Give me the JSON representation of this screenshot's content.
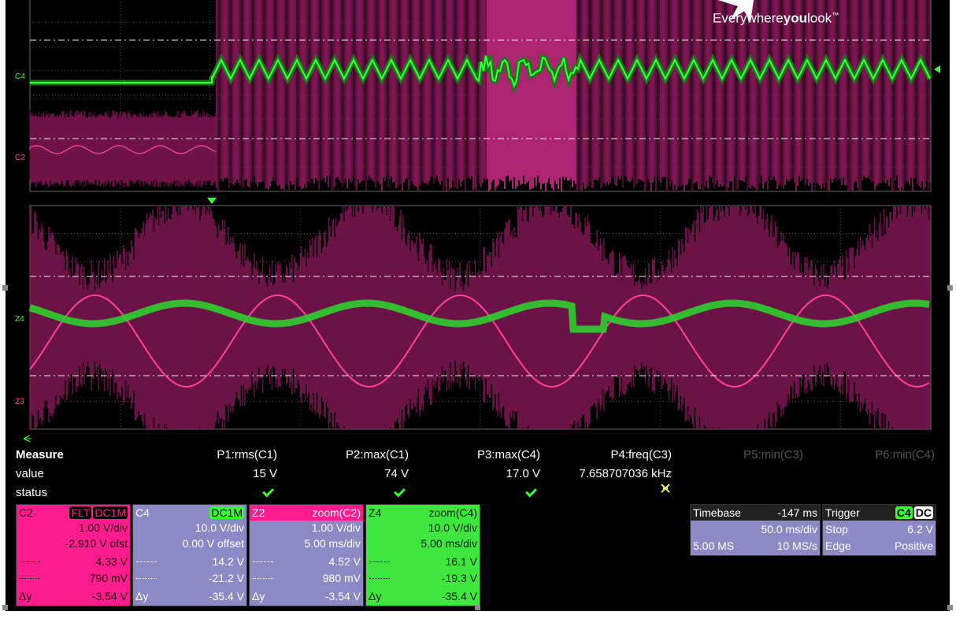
{
  "logo": {
    "parts": [
      "Everywhere",
      "you",
      "look",
      "™"
    ]
  },
  "traces": {
    "upper": [
      "C4",
      "C2"
    ],
    "lower": [
      "Z4",
      "Z3"
    ]
  },
  "measure": {
    "title": "Measure",
    "row_labels": [
      "value",
      "status"
    ],
    "params": [
      {
        "name": "P1:rms(C1)",
        "value": "15 V"
      },
      {
        "name": "P2:max(C1)",
        "value": "74 V"
      },
      {
        "name": "P3:max(C4)",
        "value": "17.0 V"
      },
      {
        "name": "P4:freq(C3)",
        "value": "7.658707036 kHz"
      },
      {
        "name": "P5:min(C3)"
      },
      {
        "name": "P6:min(C4)"
      }
    ]
  },
  "channels": [
    {
      "id": "C2",
      "badges": [
        "FLT",
        "DC1M"
      ],
      "scale": "1.00 V/div",
      "offset": "-2.910 V ofst",
      "cursor1": "4.33 V",
      "cursor2": "790 mV",
      "delta_label": "Δy",
      "delta": "-3.54 V"
    },
    {
      "id": "C4",
      "badges": [
        "DC1M"
      ],
      "scale": "10.0 V/div",
      "offset": "0.00 V offset",
      "cursor1": "14.2 V",
      "cursor2": "-21.2 V",
      "delta_label": "Δy",
      "delta": "-35.4 V"
    },
    {
      "id": "Z2",
      "source": "zoom(C2)",
      "scale": "1.00 V/div",
      "timescale": "5.00 ms/div",
      "cursor1": "4.52 V",
      "cursor2": "980 mV",
      "delta_label": "Δy",
      "delta": "-3.54 V"
    },
    {
      "id": "Z4",
      "source": "zoom(C4)",
      "scale": "10.0 V/div",
      "timescale": "5.00 ms/div",
      "cursor1": "16.1 V",
      "cursor2": "-19.3 V",
      "delta_label": "Δy",
      "delta": "-35.4 V"
    }
  ],
  "timebase": {
    "label": "Timebase",
    "delay": "-147 ms",
    "scale": "50.0 ms/div",
    "samples": "5.00 MS",
    "rate": "10 MS/s"
  },
  "trigger": {
    "label": "Trigger",
    "source": "C4",
    "coupling": "DC",
    "mode": "Stop",
    "level": "6.2 V",
    "type": "Edge",
    "slope": "Positive"
  }
}
